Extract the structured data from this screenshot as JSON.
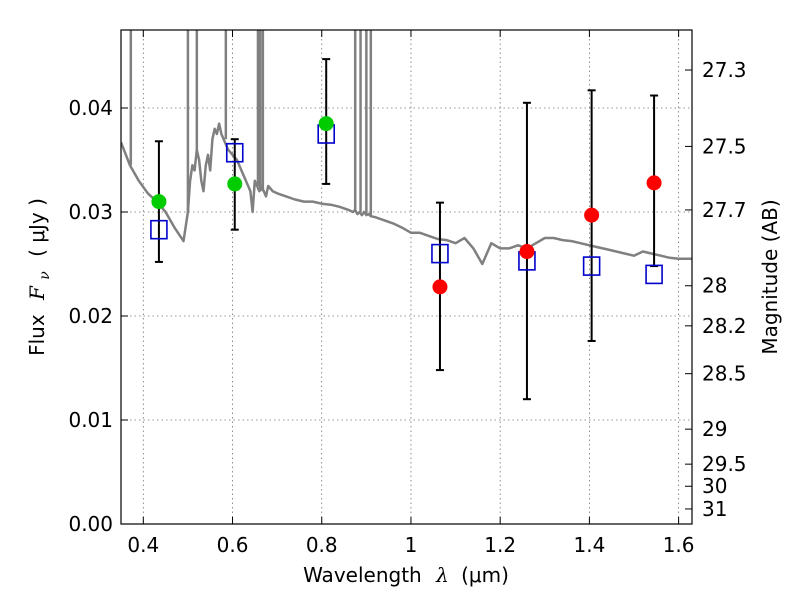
{
  "chart_data": {
    "type": "scatter",
    "xlabel_text": "Wavelength",
    "xlabel_symbol": "λ",
    "xlabel_unit": "(μm)",
    "ylabel_text": "Flux",
    "ylabel_symbol": "F",
    "ylabel_sub": "ν",
    "ylabel_unit": "( μJy )",
    "y2label": "Magnitude (AB)",
    "xlim": [
      0.35,
      1.63
    ],
    "ylim": [
      0.0,
      0.0475
    ],
    "x_ticks": [
      {
        "value": 0.4,
        "label": "0.4"
      },
      {
        "value": 0.6,
        "label": "0.6"
      },
      {
        "value": 0.8,
        "label": "0.8"
      },
      {
        "value": 1.0,
        "label": "1"
      },
      {
        "value": 1.2,
        "label": "1.2"
      },
      {
        "value": 1.4,
        "label": "1.4"
      },
      {
        "value": 1.6,
        "label": "1.6"
      }
    ],
    "y_ticks": [
      {
        "value": 0.0,
        "label": "0.00"
      },
      {
        "value": 0.01,
        "label": "0.01"
      },
      {
        "value": 0.02,
        "label": "0.02"
      },
      {
        "value": 0.03,
        "label": "0.03"
      },
      {
        "value": 0.04,
        "label": "0.04"
      }
    ],
    "y2_ticks": [
      {
        "mag": 27.3,
        "label": "27.3"
      },
      {
        "mag": 27.5,
        "label": "27.5"
      },
      {
        "mag": 27.7,
        "label": "27.7"
      },
      {
        "mag": 28.0,
        "label": "28"
      },
      {
        "mag": 28.2,
        "label": "28.2"
      },
      {
        "mag": 28.5,
        "label": "28.5"
      },
      {
        "mag": 29.0,
        "label": "29"
      },
      {
        "mag": 29.5,
        "label": "29.5"
      },
      {
        "mag": 30.0,
        "label": "30"
      },
      {
        "mag": 31.0,
        "label": "31"
      }
    ],
    "grid": true,
    "colors": {
      "sed": "#808080",
      "green_points": "#00cc00",
      "red_points": "#ff0000",
      "model_squares": "#0000cc",
      "error_bars": "#000000"
    },
    "series": [
      {
        "style": "line",
        "color_key": "sed",
        "x": [
          0.35,
          0.37,
          0.39,
          0.41,
          0.43,
          0.45,
          0.47,
          0.49,
          0.5,
          0.505,
          0.51,
          0.515,
          0.52,
          0.525,
          0.53,
          0.535,
          0.54,
          0.545,
          0.55,
          0.555,
          0.56,
          0.565,
          0.57,
          0.575,
          0.58,
          0.59,
          0.6,
          0.61,
          0.62,
          0.63,
          0.64,
          0.645,
          0.65,
          0.655,
          0.66,
          0.665,
          0.67,
          0.675,
          0.68,
          0.69,
          0.7,
          0.72,
          0.74,
          0.76,
          0.78,
          0.8,
          0.82,
          0.84,
          0.86,
          0.87,
          0.875,
          0.88,
          0.885,
          0.89,
          0.895,
          0.9,
          0.905,
          0.91,
          0.92,
          0.94,
          0.96,
          0.98,
          1.0,
          1.02,
          1.04,
          1.06,
          1.08,
          1.1,
          1.12,
          1.14,
          1.16,
          1.18,
          1.2,
          1.22,
          1.24,
          1.26,
          1.28,
          1.3,
          1.32,
          1.34,
          1.36,
          1.38,
          1.4,
          1.42,
          1.44,
          1.46,
          1.48,
          1.5,
          1.52,
          1.54,
          1.56,
          1.58,
          1.6,
          1.63
        ],
        "y": [
          0.0367,
          0.0345,
          0.033,
          0.0318,
          0.031,
          0.03,
          0.0285,
          0.0272,
          0.03,
          0.033,
          0.0345,
          0.034,
          0.036,
          0.035,
          0.033,
          0.032,
          0.0345,
          0.0355,
          0.034,
          0.037,
          0.038,
          0.0375,
          0.0385,
          0.0375,
          0.037,
          0.036,
          0.0355,
          0.035,
          0.034,
          0.033,
          0.032,
          0.03,
          0.033,
          0.0325,
          0.032,
          0.0325,
          0.032,
          0.0315,
          0.0325,
          0.032,
          0.0318,
          0.0315,
          0.0312,
          0.031,
          0.031,
          0.0308,
          0.0307,
          0.0305,
          0.0302,
          0.03,
          0.0302,
          0.0298,
          0.03,
          0.0297,
          0.03,
          0.0297,
          0.0298,
          0.0296,
          0.0295,
          0.0292,
          0.0289,
          0.0285,
          0.028,
          0.028,
          0.0277,
          0.0274,
          0.0273,
          0.027,
          0.0275,
          0.0265,
          0.025,
          0.027,
          0.0265,
          0.0265,
          0.0268,
          0.0265,
          0.027,
          0.0275,
          0.0275,
          0.0273,
          0.0272,
          0.027,
          0.0268,
          0.0266,
          0.0264,
          0.0262,
          0.026,
          0.0258,
          0.0262,
          0.026,
          0.0258,
          0.0256,
          0.0255,
          0.0255
        ]
      },
      {
        "style": "spikes",
        "color_key": "sed",
        "x": [
          0.372,
          0.5,
          0.52,
          0.585,
          0.657,
          0.662,
          0.668,
          0.875,
          0.887,
          0.9,
          0.91
        ]
      },
      {
        "style": "errorbar",
        "color_key": "error_bars",
        "x": [
          0.435,
          0.605,
          0.81,
          1.065,
          1.26,
          1.405,
          1.545
        ],
        "y_low": [
          0.0252,
          0.0283,
          0.0327,
          0.0148,
          0.012,
          0.0176,
          0.0248
        ],
        "y_high": [
          0.0368,
          0.037,
          0.0447,
          0.0309,
          0.0405,
          0.0417,
          0.0412
        ]
      },
      {
        "style": "square",
        "color_key": "model_squares",
        "x": [
          0.435,
          0.605,
          0.81,
          1.065,
          1.26,
          1.405,
          1.545
        ],
        "y": [
          0.0283,
          0.0357,
          0.0375,
          0.026,
          0.0253,
          0.0248,
          0.024
        ]
      },
      {
        "style": "circle",
        "color_key": "green_points",
        "x": [
          0.435,
          0.605,
          0.81
        ],
        "y": [
          0.031,
          0.0327,
          0.0385
        ]
      },
      {
        "style": "circle",
        "color_key": "red_points",
        "x": [
          1.065,
          1.26,
          1.405,
          1.545
        ],
        "y": [
          0.0228,
          0.0262,
          0.0297,
          0.0328
        ]
      }
    ]
  }
}
